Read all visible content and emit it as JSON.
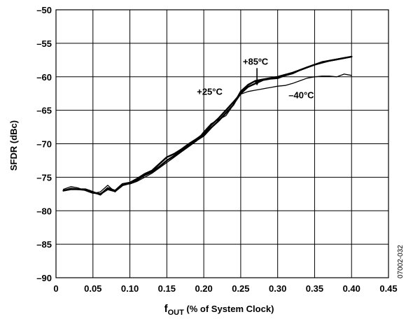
{
  "chart_data": {
    "type": "line",
    "xlabel_main": "f",
    "xlabel_sub": "OUT",
    "xlabel_rest": " (% of System Clock)",
    "ylabel": "SFDR (dBc)",
    "xlim": [
      0,
      0.45
    ],
    "ylim": [
      -90,
      -50
    ],
    "x_ticks": [
      0,
      0.05,
      0.1,
      0.15,
      0.2,
      0.25,
      0.3,
      0.35,
      0.4,
      0.45
    ],
    "x_tick_labels": [
      "0",
      "0.05",
      "0.10",
      "0.15",
      "0.20",
      "0.25",
      "0.30",
      "0.35",
      "0.40",
      "0.45"
    ],
    "y_ticks": [
      -90,
      -85,
      -80,
      -75,
      -70,
      -65,
      -60,
      -55,
      -50
    ],
    "y_tick_labels": [
      "–90",
      "–85",
      "–80",
      "–75",
      "–70",
      "–65",
      "–60",
      "–55",
      "–50"
    ],
    "grid": true,
    "figure_id": "07002-032",
    "series": [
      {
        "name": "+85°C",
        "x": [
          0.01,
          0.02,
          0.03,
          0.04,
          0.05,
          0.06,
          0.07,
          0.08,
          0.09,
          0.1,
          0.11,
          0.12,
          0.13,
          0.14,
          0.15,
          0.16,
          0.17,
          0.18,
          0.19,
          0.2,
          0.21,
          0.22,
          0.23,
          0.24,
          0.25,
          0.26,
          0.27,
          0.28,
          0.29,
          0.3,
          0.31,
          0.32,
          0.33,
          0.34,
          0.35,
          0.36,
          0.37,
          0.38,
          0.39,
          0.4
        ],
        "y": [
          -77.0,
          -76.8,
          -76.8,
          -76.8,
          -77.2,
          -77.6,
          -76.6,
          -77.0,
          -76.0,
          -75.8,
          -75.2,
          -74.5,
          -74.0,
          -73.0,
          -72.0,
          -71.5,
          -70.8,
          -70.0,
          -69.3,
          -68.5,
          -67.2,
          -66.2,
          -65.0,
          -63.8,
          -62.5,
          -61.5,
          -61.0,
          -60.5,
          -60.3,
          -60.2,
          -59.8,
          -59.5,
          -59.0,
          -58.6,
          -58.2,
          -57.9,
          -57.6,
          -57.4,
          -57.2,
          -57.0
        ]
      },
      {
        "name": "+25°C",
        "x": [
          0.01,
          0.02,
          0.03,
          0.04,
          0.05,
          0.06,
          0.07,
          0.08,
          0.09,
          0.1,
          0.11,
          0.12,
          0.13,
          0.14,
          0.15,
          0.16,
          0.17,
          0.18,
          0.19,
          0.2,
          0.21,
          0.22,
          0.23,
          0.24,
          0.25,
          0.26,
          0.27,
          0.28,
          0.29,
          0.3,
          0.31,
          0.32,
          0.33,
          0.34,
          0.35,
          0.36,
          0.37,
          0.38,
          0.39,
          0.4
        ],
        "y": [
          -77.0,
          -76.7,
          -76.8,
          -76.9,
          -77.3,
          -77.5,
          -76.8,
          -77.1,
          -76.2,
          -75.9,
          -75.4,
          -74.7,
          -74.2,
          -73.4,
          -72.5,
          -71.8,
          -71.0,
          -70.2,
          -69.5,
          -68.8,
          -67.6,
          -66.6,
          -65.4,
          -64.2,
          -62.2,
          -61.2,
          -60.6,
          -60.4,
          -60.2,
          -60.0,
          -59.7,
          -59.4,
          -59.0,
          -58.6,
          -58.2,
          -57.8,
          -57.6,
          -57.4,
          -57.2,
          -57.0
        ]
      },
      {
        "name": "–40°C",
        "x": [
          0.01,
          0.02,
          0.03,
          0.04,
          0.05,
          0.06,
          0.07,
          0.08,
          0.09,
          0.1,
          0.11,
          0.12,
          0.13,
          0.14,
          0.15,
          0.16,
          0.17,
          0.18,
          0.19,
          0.2,
          0.21,
          0.22,
          0.23,
          0.24,
          0.25,
          0.26,
          0.27,
          0.28,
          0.29,
          0.3,
          0.31,
          0.32,
          0.33,
          0.34,
          0.35,
          0.36,
          0.37,
          0.38,
          0.39,
          0.4
        ],
        "y": [
          -76.8,
          -76.4,
          -76.6,
          -77.0,
          -77.4,
          -77.2,
          -76.2,
          -77.2,
          -76.0,
          -76.0,
          -75.6,
          -75.0,
          -74.4,
          -73.6,
          -72.8,
          -72.0,
          -71.2,
          -70.4,
          -69.6,
          -68.2,
          -67.0,
          -66.4,
          -65.8,
          -64.2,
          -62.6,
          -62.2,
          -62.0,
          -61.8,
          -61.6,
          -61.4,
          -61.3,
          -61.0,
          -60.6,
          -60.2,
          -60.0,
          -59.9,
          -59.9,
          -60.0,
          -59.6,
          -59.8
        ]
      }
    ],
    "annotations": [
      {
        "text": "+85ºC",
        "x": 0.27,
        "y": -58.2
      },
      {
        "text": "+25°C",
        "x": 0.208,
        "y": -62.7
      },
      {
        "text": "–40°C",
        "x": 0.332,
        "y": -63.2
      }
    ]
  }
}
